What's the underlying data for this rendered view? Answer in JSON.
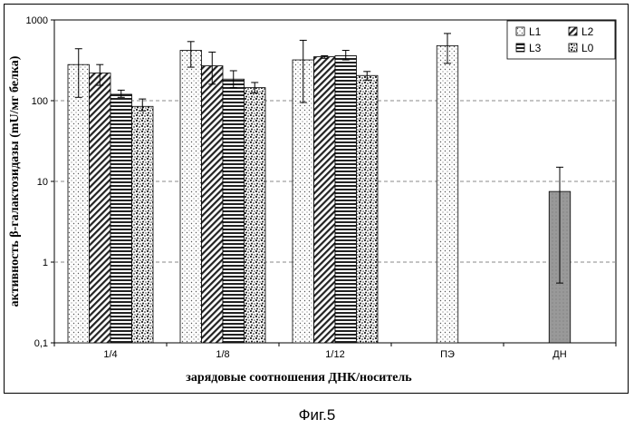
{
  "figure_caption": "Фиг.5",
  "chart_data": {
    "type": "bar",
    "scale": "log",
    "ylim": [
      0.1,
      1000
    ],
    "yticks": [
      "0,1",
      "1",
      "10",
      "100",
      "1000"
    ],
    "ylabel": "активность β-галактозидазы (mU/мг белка)",
    "xlabel": "зарядовые соотношения ДНК/носитель",
    "categories": [
      "1/4",
      "1/8",
      "1/12",
      "ПЭ",
      "ДН"
    ],
    "legend_position": "top-right",
    "grid": "dashed horizontal",
    "series": [
      {
        "name": "L1",
        "pattern": "dots",
        "values": [
          280,
          420,
          320,
          480,
          null
        ],
        "err_low": [
          110,
          260,
          95,
          290,
          null
        ],
        "err_high": [
          440,
          540,
          560,
          680,
          null
        ]
      },
      {
        "name": "L2",
        "pattern": "diagonal",
        "values": [
          220,
          270,
          350,
          null,
          null
        ],
        "err_low": [
          155,
          160,
          335,
          null,
          null
        ],
        "err_high": [
          280,
          400,
          360,
          null,
          null
        ]
      },
      {
        "name": "L3",
        "pattern": "horizontal",
        "values": [
          120,
          185,
          360,
          null,
          null
        ],
        "err_low": [
          110,
          145,
          320,
          null,
          null
        ],
        "err_high": [
          135,
          235,
          420,
          null,
          null
        ]
      },
      {
        "name": "L0",
        "pattern": "speckle",
        "values": [
          85,
          145,
          205,
          null,
          null
        ],
        "err_low": [
          75,
          125,
          180,
          null,
          null
        ],
        "err_high": [
          105,
          168,
          230,
          null,
          null
        ]
      },
      {
        "name": "ДН",
        "pattern": "gray",
        "values": [
          null,
          null,
          null,
          null,
          7.5
        ],
        "err_low": [
          null,
          null,
          null,
          null,
          0.55
        ],
        "err_high": [
          null,
          null,
          null,
          null,
          15
        ]
      }
    ]
  }
}
